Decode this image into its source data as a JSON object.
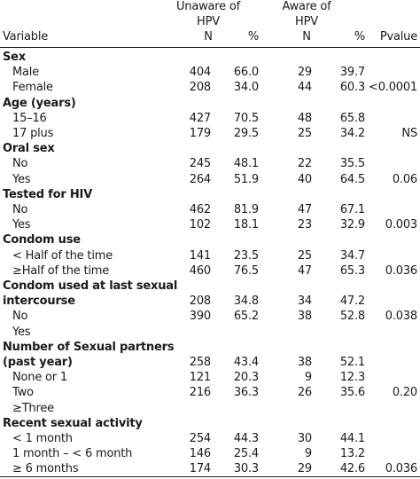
{
  "header": {
    "variable": "Variable",
    "unaware_line1": "Unaware of",
    "unaware_line2": "HPV",
    "aware_line1": "Aware of",
    "aware_line2": "HPV",
    "n1": "N",
    "pct1": "%",
    "n2": "N",
    "pct2": "%",
    "pvalue": "Pvalue"
  },
  "rows": [
    {
      "type": "section",
      "label": "Sex"
    },
    {
      "type": "data",
      "label": "Male",
      "n1": "404",
      "p1": "66.0",
      "n2": "29",
      "p2": "39.7",
      "pv": ""
    },
    {
      "type": "data",
      "label": "Female",
      "n1": "208",
      "p1": "34.0",
      "n2": "44",
      "p2": "60.3",
      "pv": "<0.0001"
    },
    {
      "type": "section",
      "label": "Age (years)"
    },
    {
      "type": "data",
      "label": "15–16",
      "n1": "427",
      "p1": "70.5",
      "n2": "48",
      "p2": "65.8",
      "pv": ""
    },
    {
      "type": "data",
      "label": "17 plus",
      "n1": "179",
      "p1": "29.5",
      "n2": "25",
      "p2": "34.2",
      "pv": "NS"
    },
    {
      "type": "section",
      "label": "Oral sex"
    },
    {
      "type": "data",
      "label": "No",
      "n1": "245",
      "p1": "48.1",
      "n2": "22",
      "p2": "35.5",
      "pv": ""
    },
    {
      "type": "data",
      "label": "Yes",
      "n1": "264",
      "p1": "51.9",
      "n2": "40",
      "p2": "64.5",
      "pv": "0.06"
    },
    {
      "type": "section",
      "label": "Tested for HIV"
    },
    {
      "type": "data",
      "label": "No",
      "n1": "462",
      "p1": "81.9",
      "n2": "47",
      "p2": "67.1",
      "pv": ""
    },
    {
      "type": "data",
      "label": "Yes",
      "n1": "102",
      "p1": "18.1",
      "n2": "23",
      "p2": "32.9",
      "pv": "0.003"
    },
    {
      "type": "section",
      "label": "Condom use"
    },
    {
      "type": "data",
      "label": "< Half of the time",
      "n1": "141",
      "p1": "23.5",
      "n2": "25",
      "p2": "34.7",
      "pv": ""
    },
    {
      "type": "data",
      "label": "≥Half of the time",
      "n1": "460",
      "p1": "76.5",
      "n2": "47",
      "p2": "65.3",
      "pv": "0.036"
    },
    {
      "type": "section",
      "label": "Condom used at last sexual"
    },
    {
      "type": "section-data",
      "label": "intercourse",
      "n1": "208",
      "p1": "34.8",
      "n2": "34",
      "p2": "47.2",
      "pv": ""
    },
    {
      "type": "data",
      "label": "No",
      "n1": "390",
      "p1": "65.2",
      "n2": "38",
      "p2": "52.8",
      "pv": "0.038"
    },
    {
      "type": "data",
      "label": "Yes",
      "n1": "",
      "p1": "",
      "n2": "",
      "p2": "",
      "pv": ""
    },
    {
      "type": "section",
      "label": "Number of Sexual partners"
    },
    {
      "type": "section-data",
      "label": "(past year)",
      "n1": "258",
      "p1": "43.4",
      "n2": "38",
      "p2": "52.1",
      "pv": ""
    },
    {
      "type": "data",
      "label": "None or 1",
      "n1": "121",
      "p1": "20.3",
      "n2": "9",
      "p2": "12.3",
      "pv": ""
    },
    {
      "type": "data",
      "label": "Two",
      "n1": "216",
      "p1": "36.3",
      "n2": "26",
      "p2": "35.6",
      "pv": "0.20"
    },
    {
      "type": "data",
      "label": "≥Three",
      "n1": "",
      "p1": "",
      "n2": "",
      "p2": "",
      "pv": ""
    },
    {
      "type": "section",
      "label": "Recent sexual activity"
    },
    {
      "type": "data",
      "label": "< 1 month",
      "n1": "254",
      "p1": "44.3",
      "n2": "30",
      "p2": "44.1",
      "pv": ""
    },
    {
      "type": "data",
      "label": "1 month – < 6 month",
      "n1": "146",
      "p1": "25.4",
      "n2": "9",
      "p2": "13.2",
      "pv": ""
    },
    {
      "type": "data",
      "label": "≥ 6 months",
      "n1": "174",
      "p1": "30.3",
      "n2": "29",
      "p2": "42.6",
      "pv": "0.036"
    }
  ]
}
